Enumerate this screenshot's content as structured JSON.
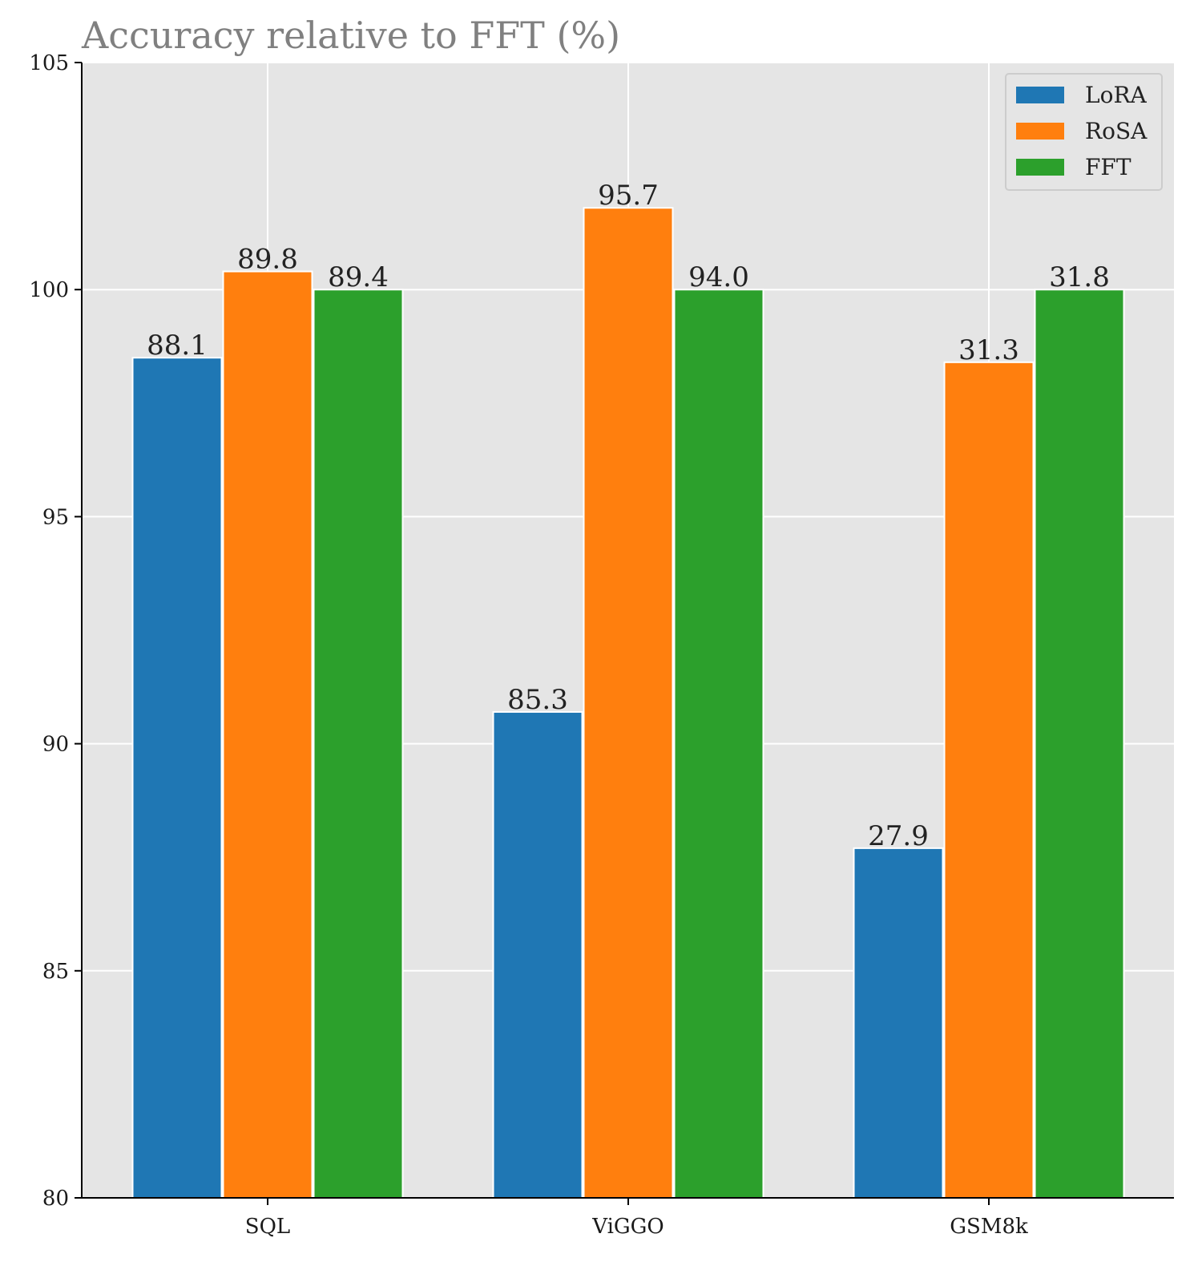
{
  "chart_data": {
    "type": "bar",
    "title": "Accuracy relative to FFT (%)",
    "xlabel": "",
    "ylabel": "",
    "categories": [
      "SQL",
      "ViGGO",
      "GSM8k"
    ],
    "series": [
      {
        "name": "LoRA",
        "color": "#1f77b4",
        "values": [
          98.5,
          90.7,
          87.7
        ],
        "labels": [
          "88.1",
          "85.3",
          "27.9"
        ]
      },
      {
        "name": "RoSA",
        "color": "#ff7f0e",
        "values": [
          100.4,
          101.8,
          98.4
        ],
        "labels": [
          "89.8",
          "95.7",
          "31.3"
        ]
      },
      {
        "name": "FFT",
        "color": "#2ca02c",
        "values": [
          100.0,
          100.0,
          100.0
        ],
        "labels": [
          "89.4",
          "94.0",
          "31.8"
        ]
      }
    ],
    "ylim": [
      80,
      105
    ],
    "yticks": [
      80,
      85,
      90,
      95,
      100,
      105
    ],
    "grid": true,
    "legend": "top-right",
    "background": "#e5e5e5"
  }
}
